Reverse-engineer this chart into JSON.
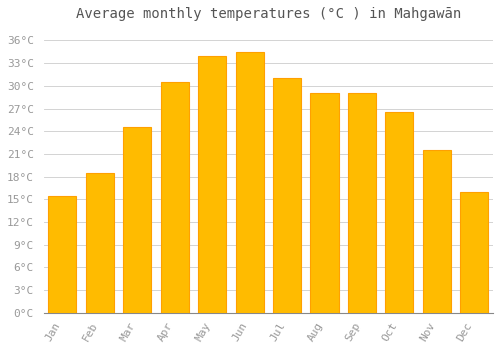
{
  "title": "Average monthly temperatures (°C ) in Mahgawān",
  "months": [
    "Jan",
    "Feb",
    "Mar",
    "Apr",
    "May",
    "Jun",
    "Jul",
    "Aug",
    "Sep",
    "Oct",
    "Nov",
    "Dec"
  ],
  "values": [
    15.5,
    18.5,
    24.5,
    30.5,
    34.0,
    34.5,
    31.0,
    29.0,
    29.0,
    26.5,
    21.5,
    16.0
  ],
  "bar_color": "#FFBB00",
  "bar_edge_color": "#FFA000",
  "background_color": "#ffffff",
  "grid_color": "#cccccc",
  "ytick_labels": [
    "0°C",
    "3°C",
    "6°C",
    "9°C",
    "12°C",
    "15°C",
    "18°C",
    "21°C",
    "24°C",
    "27°C",
    "30°C",
    "33°C",
    "36°C"
  ],
  "ytick_values": [
    0,
    3,
    6,
    9,
    12,
    15,
    18,
    21,
    24,
    27,
    30,
    33,
    36
  ],
  "ylim": [
    0,
    37.5
  ],
  "title_fontsize": 10,
  "tick_fontsize": 8,
  "label_color": "#999999",
  "title_color": "#555555"
}
